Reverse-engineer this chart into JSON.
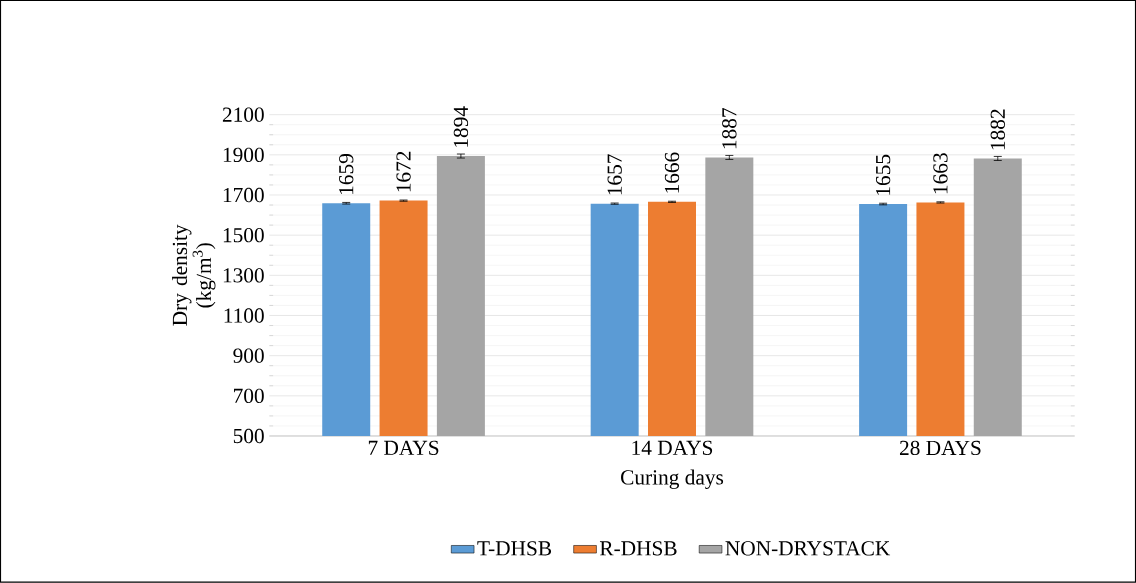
{
  "chart_data": {
    "type": "bar",
    "xlabel": "Curing days",
    "ylabel": "Dry density (kg/m$^{3}$)",
    "categories": [
      "7 DAYS",
      "14 DAYS",
      "28 DAYS"
    ],
    "series": [
      {
        "name": "T-DHSB",
        "color": "#5b9bd5",
        "values": [
          1659,
          1657,
          1655
        ],
        "errors": [
          4,
          3,
          4
        ]
      },
      {
        "name": "R-DHSB",
        "color": "#ed7d31",
        "values": [
          1672,
          1666,
          1663
        ],
        "errors": [
          3,
          3,
          3
        ]
      },
      {
        "name": "NON-DRYSTACK",
        "color": "#a5a5a5",
        "values": [
          1894,
          1887,
          1882
        ],
        "errors": [
          10,
          10,
          10
        ]
      }
    ],
    "ylim": [
      500,
      2100
    ],
    "yticks": [
      500,
      700,
      900,
      1100,
      1300,
      1500,
      1700,
      1900,
      2100
    ],
    "grid": "y",
    "legend": "bottom",
    "data_labels": true
  }
}
